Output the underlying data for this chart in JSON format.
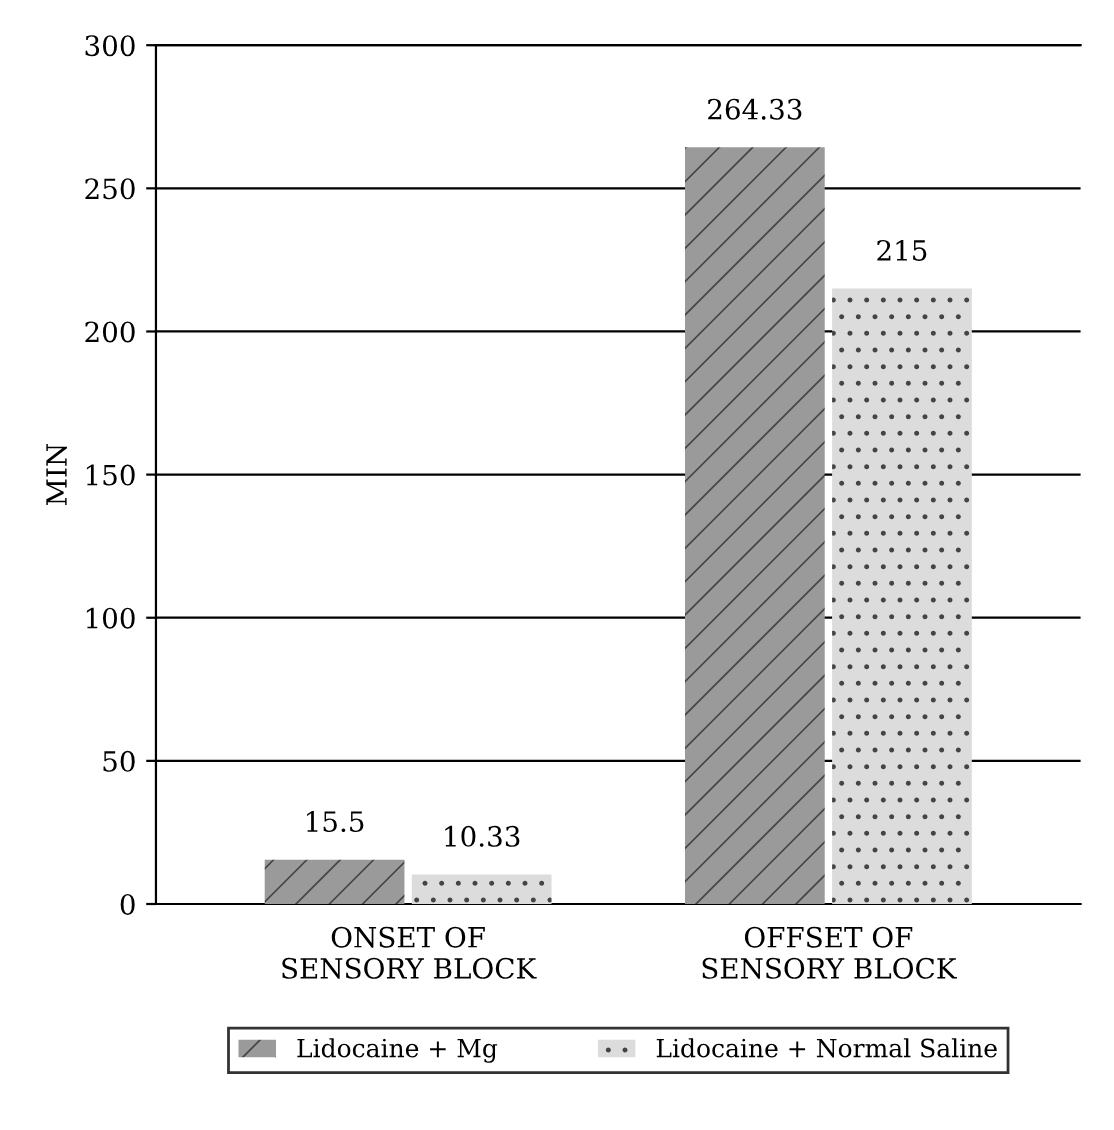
{
  "chart_data": {
    "type": "bar",
    "ylabel": "MIN",
    "categories": [
      "ONSET OF\nSENSORY BLOCK",
      "OFFSET OF\nSENSORY BLOCK"
    ],
    "series": [
      {
        "name": "Lidocaine + Mg",
        "color": "#9a9a9a",
        "values": [
          15.5,
          264.33
        ]
      },
      {
        "name": "Lidocaine + Normal Saline",
        "color": "#dcdcdc",
        "values": [
          10.33,
          215
        ]
      }
    ],
    "ylim": [
      0,
      300
    ],
    "yticks": [
      0,
      50,
      100,
      150,
      200,
      250,
      300
    ],
    "grid": "y",
    "legend": "bottom",
    "data_labels": true
  }
}
